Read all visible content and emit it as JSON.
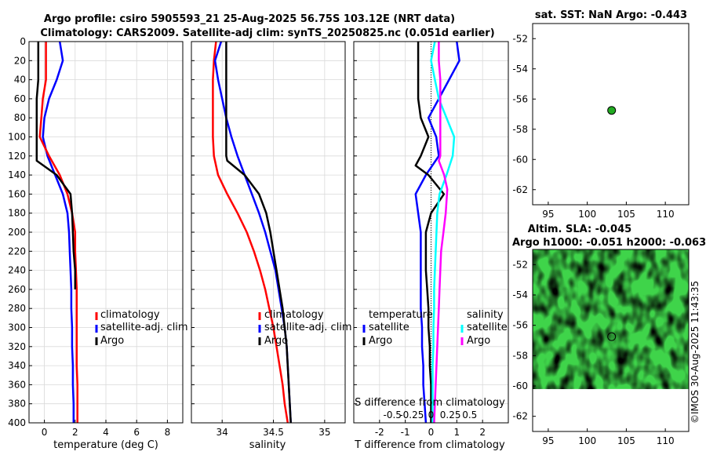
{
  "titles": {
    "line1": "Argo profile: csiro 5905593_21 25-Aug-2025 56.75S 103.12E (NRT data)",
    "line2": "Climatology: CARS2009. Satellite-adj clim: synTS_20250825.nc (0.051d earlier)",
    "sst": "sat. SST: NaN Argo: -0.443",
    "sla": "Altim. SLA: -0.045",
    "height": "Argo h1000: -0.051 h2000: -0.063"
  },
  "watermark": "©IMOS 30-Aug-2025 11:43:35",
  "colors": {
    "climatology": "#ff0000",
    "satellite": "#0000ff",
    "argo": "#000000",
    "salinity_satellite": "#00ffff",
    "salinity_argo": "#ff00ff",
    "marker": "#22aa22"
  },
  "chart_data": [
    {
      "type": "line",
      "id": "temperature",
      "xlabel": "temperature (deg C)",
      "ylabel": "",
      "xlim": [
        -1,
        9
      ],
      "ylim": [
        400,
        0
      ],
      "xticks": [
        0,
        2,
        4,
        6,
        8
      ],
      "yticks": [
        0,
        20,
        40,
        60,
        80,
        100,
        120,
        140,
        160,
        180,
        200,
        220,
        240,
        260,
        280,
        300,
        320,
        340,
        360,
        380,
        400
      ],
      "legend": [
        "climatology",
        "satellite-adj. clim",
        "Argo"
      ],
      "series": [
        {
          "name": "climatology",
          "color": "#ff0000",
          "x": [
            0.1,
            0.1,
            0.1,
            -0.1,
            -0.2,
            -0.3,
            0.3,
            1.0,
            1.5,
            1.8,
            2.0,
            2.0,
            2.05,
            2.1,
            2.1,
            2.1,
            2.1,
            2.1,
            2.15,
            2.15,
            2.15
          ],
          "y": [
            0,
            20,
            40,
            60,
            80,
            100,
            120,
            140,
            160,
            180,
            200,
            220,
            240,
            260,
            280,
            300,
            320,
            340,
            360,
            380,
            400
          ]
        },
        {
          "name": "satellite",
          "color": "#0000ff",
          "x": [
            1.0,
            1.2,
            0.8,
            0.3,
            0.0,
            -0.1,
            0.2,
            0.7,
            1.2,
            1.5,
            1.6,
            1.65,
            1.7,
            1.75,
            1.75,
            1.8,
            1.8,
            1.85,
            1.85,
            1.9,
            1.9
          ],
          "y": [
            0,
            20,
            40,
            60,
            80,
            100,
            120,
            140,
            160,
            180,
            200,
            220,
            240,
            260,
            280,
            300,
            320,
            340,
            360,
            380,
            400
          ]
        },
        {
          "name": "Argo",
          "color": "#000000",
          "x": [
            -0.4,
            -0.4,
            -0.4,
            -0.5,
            -0.5,
            -0.5,
            -0.5,
            -0.5,
            0.8,
            1.7,
            1.8,
            1.85,
            1.9,
            2.0,
            2.0,
            2.0
          ],
          "y": [
            0,
            20,
            40,
            60,
            80,
            100,
            120,
            125,
            140,
            160,
            180,
            200,
            220,
            240,
            250,
            260
          ]
        }
      ]
    },
    {
      "type": "line",
      "id": "salinity",
      "xlabel": "salinity",
      "ylabel": "",
      "xlim": [
        33.7,
        35.2
      ],
      "ylim": [
        400,
        0
      ],
      "xticks": [
        34,
        34.5,
        35
      ],
      "xticklabels": [
        "34",
        "34.5",
        "35"
      ],
      "legend": [
        "climatology",
        "satellite-adj. clim",
        "Argo"
      ],
      "series": [
        {
          "name": "climatology",
          "color": "#ff0000",
          "x": [
            33.94,
            33.92,
            33.91,
            33.91,
            33.91,
            33.91,
            33.92,
            33.96,
            34.05,
            34.15,
            34.24,
            34.31,
            34.37,
            34.42,
            34.46,
            34.5,
            34.53,
            34.56,
            34.59,
            34.61,
            34.64
          ],
          "y": [
            0,
            20,
            40,
            60,
            80,
            100,
            120,
            140,
            160,
            180,
            200,
            220,
            240,
            260,
            280,
            300,
            320,
            340,
            360,
            380,
            400
          ]
        },
        {
          "name": "satellite",
          "color": "#0000ff",
          "x": [
            33.99,
            33.93,
            33.96,
            34.0,
            34.04,
            34.09,
            34.15,
            34.22,
            34.29,
            34.36,
            34.42,
            34.47,
            34.52,
            34.55,
            34.58,
            34.61,
            34.63,
            34.64,
            34.65,
            34.66,
            34.67
          ],
          "y": [
            0,
            20,
            40,
            60,
            80,
            100,
            120,
            140,
            160,
            180,
            200,
            220,
            240,
            260,
            280,
            300,
            320,
            340,
            360,
            380,
            400
          ]
        },
        {
          "name": "Argo",
          "color": "#000000",
          "x": [
            34.04,
            34.04,
            34.04,
            34.04,
            34.04,
            34.04,
            34.04,
            34.05,
            34.22,
            34.36,
            34.43,
            34.47,
            34.5,
            34.53,
            34.56,
            34.59,
            34.61,
            34.63,
            34.64,
            34.65,
            34.66,
            34.67
          ],
          "y": [
            0,
            20,
            40,
            60,
            80,
            100,
            120,
            125,
            140,
            160,
            180,
            200,
            220,
            240,
            260,
            280,
            300,
            320,
            340,
            360,
            380,
            400
          ]
        }
      ]
    },
    {
      "type": "line",
      "id": "difference",
      "xlabel": "T difference from climatology",
      "x2label": "S difference from climatology",
      "xlim": [
        -3,
        3
      ],
      "ylim": [
        400,
        0
      ],
      "xticks": [
        -2,
        -1,
        0,
        1,
        2
      ],
      "xticklabels": [
        "-2",
        "-1",
        "0",
        "1",
        "2"
      ],
      "x2ticks": [
        -0.5,
        -0.25,
        0,
        0.25,
        0.5
      ],
      "x2ticklabels": [
        "-0.5",
        "-0.25",
        "0",
        "0.25",
        "0.5"
      ],
      "legend_temperature_title": "temperature",
      "legend_salinity_title": "salinity",
      "legend": [
        "satellite",
        "Argo",
        "satellite",
        "Argo"
      ],
      "series": [
        {
          "name": "T satellite",
          "color": "#0000ff",
          "x": [
            1.0,
            1.1,
            0.7,
            0.3,
            -0.1,
            0.2,
            0.3,
            -0.2,
            -0.6,
            -0.5,
            -0.4,
            -0.4,
            -0.4,
            -0.4,
            -0.4,
            -0.35,
            -0.35,
            -0.3,
            -0.3,
            -0.25,
            -0.2
          ],
          "y": [
            0,
            20,
            40,
            60,
            80,
            100,
            120,
            140,
            160,
            180,
            200,
            220,
            240,
            260,
            280,
            300,
            320,
            340,
            360,
            380,
            400
          ]
        },
        {
          "name": "T Argo",
          "color": "#000000",
          "x": [
            -0.5,
            -0.5,
            -0.5,
            -0.5,
            -0.4,
            -0.1,
            -0.4,
            -0.6,
            -0.1,
            0.5,
            0.0,
            -0.2,
            -0.2,
            -0.2,
            -0.15,
            -0.1,
            -0.1,
            -0.05,
            -0.05,
            0.0,
            0.0
          ],
          "y": [
            0,
            20,
            40,
            60,
            80,
            100,
            120,
            130,
            140,
            160,
            180,
            200,
            220,
            240,
            260,
            280,
            300,
            320,
            340,
            360,
            400
          ]
        },
        {
          "name": "S satellite",
          "color": "#00ffff",
          "x": [
            0.05,
            0.0,
            0.05,
            0.1,
            0.2,
            0.3,
            0.28,
            0.2,
            0.11,
            0.08,
            0.07,
            0.06,
            0.05,
            0.04,
            0.04,
            0.03,
            0.03,
            0.02,
            0.02,
            0.02,
            0.02
          ],
          "y": [
            0,
            20,
            40,
            60,
            80,
            100,
            120,
            140,
            160,
            180,
            200,
            220,
            240,
            260,
            280,
            300,
            320,
            340,
            360,
            380,
            400
          ]
        },
        {
          "name": "S Argo",
          "color": "#ff00ff",
          "x": [
            0.1,
            0.1,
            0.12,
            0.12,
            0.12,
            0.12,
            0.12,
            0.1,
            0.17,
            0.21,
            0.19,
            0.16,
            0.13,
            0.12,
            0.11,
            0.1,
            0.09,
            0.08,
            0.07,
            0.06,
            0.05,
            0.04
          ],
          "y": [
            0,
            20,
            40,
            60,
            80,
            100,
            120,
            125,
            140,
            155,
            180,
            200,
            220,
            240,
            260,
            280,
            300,
            320,
            340,
            360,
            380,
            400
          ]
        }
      ]
    },
    {
      "type": "scatter",
      "id": "sst-map",
      "title": "sat. SST: NaN Argo: -0.443",
      "xlim": [
        93,
        113
      ],
      "ylim": [
        -63,
        -51
      ],
      "xticks": [
        95,
        100,
        105,
        110
      ],
      "yticks": [
        -52,
        -54,
        -56,
        -58,
        -60,
        -62
      ],
      "points": [
        {
          "name": "Argo position",
          "x": 103.12,
          "y": -56.75
        }
      ]
    },
    {
      "type": "heatmap",
      "id": "sla-map",
      "title": "Altim. SLA: -0.045",
      "xlim": [
        93,
        113
      ],
      "ylim": [
        -63,
        -51
      ],
      "data_lat_range": [
        -60.2,
        -51
      ],
      "xticks": [
        95,
        100,
        105,
        110
      ],
      "yticks": [
        -52,
        -54,
        -56,
        -58,
        -60,
        -62
      ],
      "points": [
        {
          "name": "Argo position",
          "x": 103.12,
          "y": -56.75
        }
      ]
    }
  ]
}
